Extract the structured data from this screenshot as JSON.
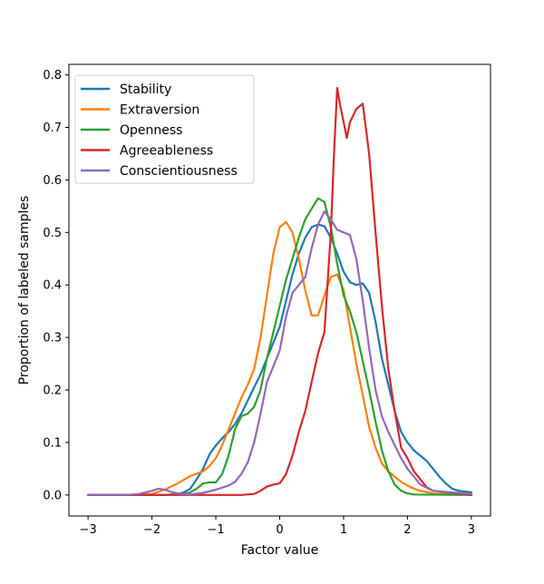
{
  "chart_data": {
    "type": "line",
    "title": "",
    "xlabel": "Factor value",
    "ylabel": "Proportion of labeled samples",
    "xlim": [
      -3.3,
      3.3
    ],
    "ylim": [
      -0.04,
      0.82
    ],
    "xticks": [
      -3,
      -2,
      -1,
      0,
      1,
      2,
      3
    ],
    "xtick_labels": [
      "−3",
      "−2",
      "−1",
      "0",
      "1",
      "2",
      "3"
    ],
    "yticks": [
      0.0,
      0.1,
      0.2,
      0.3,
      0.4,
      0.5,
      0.6,
      0.7,
      0.8
    ],
    "ytick_labels": [
      "0.0",
      "0.1",
      "0.2",
      "0.3",
      "0.4",
      "0.5",
      "0.6",
      "0.7",
      "0.8"
    ],
    "grid": false,
    "legend_position": "top-left",
    "series": [
      {
        "name": "Stability",
        "color": "#1f77b4",
        "points": [
          [
            -3.0,
            0.0
          ],
          [
            -2.4,
            0.0
          ],
          [
            -1.8,
            0.0
          ],
          [
            -1.6,
            0.002
          ],
          [
            -1.5,
            0.005
          ],
          [
            -1.4,
            0.012
          ],
          [
            -1.3,
            0.03
          ],
          [
            -1.2,
            0.05
          ],
          [
            -1.1,
            0.077
          ],
          [
            -1.0,
            0.094
          ],
          [
            -0.9,
            0.108
          ],
          [
            -0.8,
            0.12
          ],
          [
            -0.7,
            0.135
          ],
          [
            -0.6,
            0.155
          ],
          [
            -0.5,
            0.18
          ],
          [
            -0.4,
            0.205
          ],
          [
            -0.3,
            0.23
          ],
          [
            -0.2,
            0.26
          ],
          [
            -0.1,
            0.29
          ],
          [
            0.0,
            0.32
          ],
          [
            0.1,
            0.37
          ],
          [
            0.2,
            0.42
          ],
          [
            0.3,
            0.46
          ],
          [
            0.4,
            0.49
          ],
          [
            0.5,
            0.51
          ],
          [
            0.6,
            0.515
          ],
          [
            0.7,
            0.512
          ],
          [
            0.8,
            0.49
          ],
          [
            0.9,
            0.46
          ],
          [
            1.0,
            0.425
          ],
          [
            1.1,
            0.405
          ],
          [
            1.2,
            0.4
          ],
          [
            1.3,
            0.403
          ],
          [
            1.4,
            0.385
          ],
          [
            1.5,
            0.33
          ],
          [
            1.6,
            0.26
          ],
          [
            1.7,
            0.21
          ],
          [
            1.8,
            0.16
          ],
          [
            1.9,
            0.12
          ],
          [
            2.0,
            0.1
          ],
          [
            2.1,
            0.085
          ],
          [
            2.2,
            0.075
          ],
          [
            2.3,
            0.065
          ],
          [
            2.4,
            0.05
          ],
          [
            2.5,
            0.035
          ],
          [
            2.6,
            0.022
          ],
          [
            2.7,
            0.012
          ],
          [
            2.8,
            0.008
          ],
          [
            3.0,
            0.005
          ]
        ]
      },
      {
        "name": "Extraversion",
        "color": "#ff7f0e",
        "points": [
          [
            -3.0,
            0.0
          ],
          [
            -2.4,
            0.0
          ],
          [
            -2.0,
            0.002
          ],
          [
            -1.8,
            0.01
          ],
          [
            -1.6,
            0.022
          ],
          [
            -1.4,
            0.036
          ],
          [
            -1.2,
            0.045
          ],
          [
            -1.1,
            0.055
          ],
          [
            -1.0,
            0.07
          ],
          [
            -0.9,
            0.095
          ],
          [
            -0.8,
            0.125
          ],
          [
            -0.7,
            0.155
          ],
          [
            -0.6,
            0.185
          ],
          [
            -0.5,
            0.21
          ],
          [
            -0.4,
            0.24
          ],
          [
            -0.3,
            0.3
          ],
          [
            -0.2,
            0.38
          ],
          [
            -0.1,
            0.46
          ],
          [
            0.0,
            0.51
          ],
          [
            0.1,
            0.52
          ],
          [
            0.2,
            0.5
          ],
          [
            0.3,
            0.45
          ],
          [
            0.4,
            0.39
          ],
          [
            0.5,
            0.342
          ],
          [
            0.6,
            0.342
          ],
          [
            0.7,
            0.38
          ],
          [
            0.8,
            0.415
          ],
          [
            0.9,
            0.42
          ],
          [
            1.0,
            0.39
          ],
          [
            1.1,
            0.32
          ],
          [
            1.2,
            0.25
          ],
          [
            1.3,
            0.19
          ],
          [
            1.4,
            0.13
          ],
          [
            1.5,
            0.09
          ],
          [
            1.6,
            0.06
          ],
          [
            1.7,
            0.045
          ],
          [
            1.8,
            0.035
          ],
          [
            1.9,
            0.025
          ],
          [
            2.0,
            0.018
          ],
          [
            2.1,
            0.012
          ],
          [
            2.2,
            0.008
          ],
          [
            2.4,
            0.003
          ],
          [
            3.0,
            0.0
          ]
        ]
      },
      {
        "name": "Openness",
        "color": "#2ca02c",
        "points": [
          [
            -3.0,
            0.0
          ],
          [
            -2.4,
            0.0
          ],
          [
            -1.8,
            0.0
          ],
          [
            -1.5,
            0.002
          ],
          [
            -1.4,
            0.005
          ],
          [
            -1.3,
            0.012
          ],
          [
            -1.2,
            0.022
          ],
          [
            -1.1,
            0.024
          ],
          [
            -1.0,
            0.024
          ],
          [
            -0.9,
            0.04
          ],
          [
            -0.8,
            0.075
          ],
          [
            -0.7,
            0.125
          ],
          [
            -0.6,
            0.15
          ],
          [
            -0.5,
            0.155
          ],
          [
            -0.4,
            0.168
          ],
          [
            -0.3,
            0.2
          ],
          [
            -0.2,
            0.26
          ],
          [
            -0.1,
            0.31
          ],
          [
            0.0,
            0.36
          ],
          [
            0.1,
            0.41
          ],
          [
            0.2,
            0.45
          ],
          [
            0.3,
            0.49
          ],
          [
            0.4,
            0.525
          ],
          [
            0.5,
            0.545
          ],
          [
            0.6,
            0.565
          ],
          [
            0.7,
            0.558
          ],
          [
            0.8,
            0.51
          ],
          [
            0.9,
            0.44
          ],
          [
            1.0,
            0.38
          ],
          [
            1.1,
            0.35
          ],
          [
            1.2,
            0.31
          ],
          [
            1.3,
            0.255
          ],
          [
            1.4,
            0.2
          ],
          [
            1.5,
            0.14
          ],
          [
            1.6,
            0.085
          ],
          [
            1.7,
            0.045
          ],
          [
            1.8,
            0.02
          ],
          [
            1.9,
            0.008
          ],
          [
            2.0,
            0.003
          ],
          [
            2.1,
            0.001
          ],
          [
            3.0,
            0.0
          ]
        ]
      },
      {
        "name": "Agreeableness",
        "color": "#d62728",
        "points": [
          [
            -3.0,
            0.0
          ],
          [
            -2.4,
            0.0
          ],
          [
            -1.8,
            0.0
          ],
          [
            -1.2,
            0.0
          ],
          [
            -0.6,
            0.0
          ],
          [
            -0.4,
            0.002
          ],
          [
            -0.3,
            0.008
          ],
          [
            -0.2,
            0.016
          ],
          [
            -0.1,
            0.02
          ],
          [
            0.0,
            0.022
          ],
          [
            0.1,
            0.04
          ],
          [
            0.2,
            0.075
          ],
          [
            0.3,
            0.12
          ],
          [
            0.4,
            0.16
          ],
          [
            0.5,
            0.215
          ],
          [
            0.6,
            0.27
          ],
          [
            0.7,
            0.31
          ],
          [
            0.8,
            0.5
          ],
          [
            0.85,
            0.65
          ],
          [
            0.9,
            0.775
          ],
          [
            0.95,
            0.74
          ],
          [
            1.0,
            0.71
          ],
          [
            1.05,
            0.68
          ],
          [
            1.1,
            0.71
          ],
          [
            1.2,
            0.735
          ],
          [
            1.3,
            0.745
          ],
          [
            1.4,
            0.65
          ],
          [
            1.5,
            0.5
          ],
          [
            1.6,
            0.36
          ],
          [
            1.7,
            0.24
          ],
          [
            1.8,
            0.16
          ],
          [
            1.9,
            0.09
          ],
          [
            2.0,
            0.07
          ],
          [
            2.1,
            0.045
          ],
          [
            2.2,
            0.03
          ],
          [
            2.3,
            0.015
          ],
          [
            2.4,
            0.008
          ],
          [
            3.0,
            0.0
          ]
        ]
      },
      {
        "name": "Conscientiousness",
        "color": "#9467bd",
        "points": [
          [
            -3.0,
            0.0
          ],
          [
            -2.4,
            0.0
          ],
          [
            -2.2,
            0.002
          ],
          [
            -2.0,
            0.008
          ],
          [
            -1.9,
            0.012
          ],
          [
            -1.8,
            0.01
          ],
          [
            -1.7,
            0.006
          ],
          [
            -1.6,
            0.003
          ],
          [
            -1.4,
            0.001
          ],
          [
            -1.2,
            0.004
          ],
          [
            -1.0,
            0.01
          ],
          [
            -0.9,
            0.014
          ],
          [
            -0.8,
            0.018
          ],
          [
            -0.7,
            0.025
          ],
          [
            -0.6,
            0.04
          ],
          [
            -0.5,
            0.062
          ],
          [
            -0.4,
            0.1
          ],
          [
            -0.3,
            0.155
          ],
          [
            -0.2,
            0.215
          ],
          [
            -0.1,
            0.245
          ],
          [
            0.0,
            0.275
          ],
          [
            0.1,
            0.34
          ],
          [
            0.2,
            0.385
          ],
          [
            0.3,
            0.4
          ],
          [
            0.4,
            0.415
          ],
          [
            0.5,
            0.47
          ],
          [
            0.6,
            0.515
          ],
          [
            0.7,
            0.54
          ],
          [
            0.8,
            0.525
          ],
          [
            0.9,
            0.505
          ],
          [
            1.0,
            0.5
          ],
          [
            1.1,
            0.495
          ],
          [
            1.2,
            0.45
          ],
          [
            1.3,
            0.37
          ],
          [
            1.4,
            0.28
          ],
          [
            1.5,
            0.2
          ],
          [
            1.6,
            0.15
          ],
          [
            1.7,
            0.12
          ],
          [
            1.8,
            0.095
          ],
          [
            1.9,
            0.07
          ],
          [
            2.0,
            0.05
          ],
          [
            2.1,
            0.035
          ],
          [
            2.2,
            0.02
          ],
          [
            2.4,
            0.008
          ],
          [
            3.0,
            0.002
          ]
        ]
      }
    ]
  }
}
